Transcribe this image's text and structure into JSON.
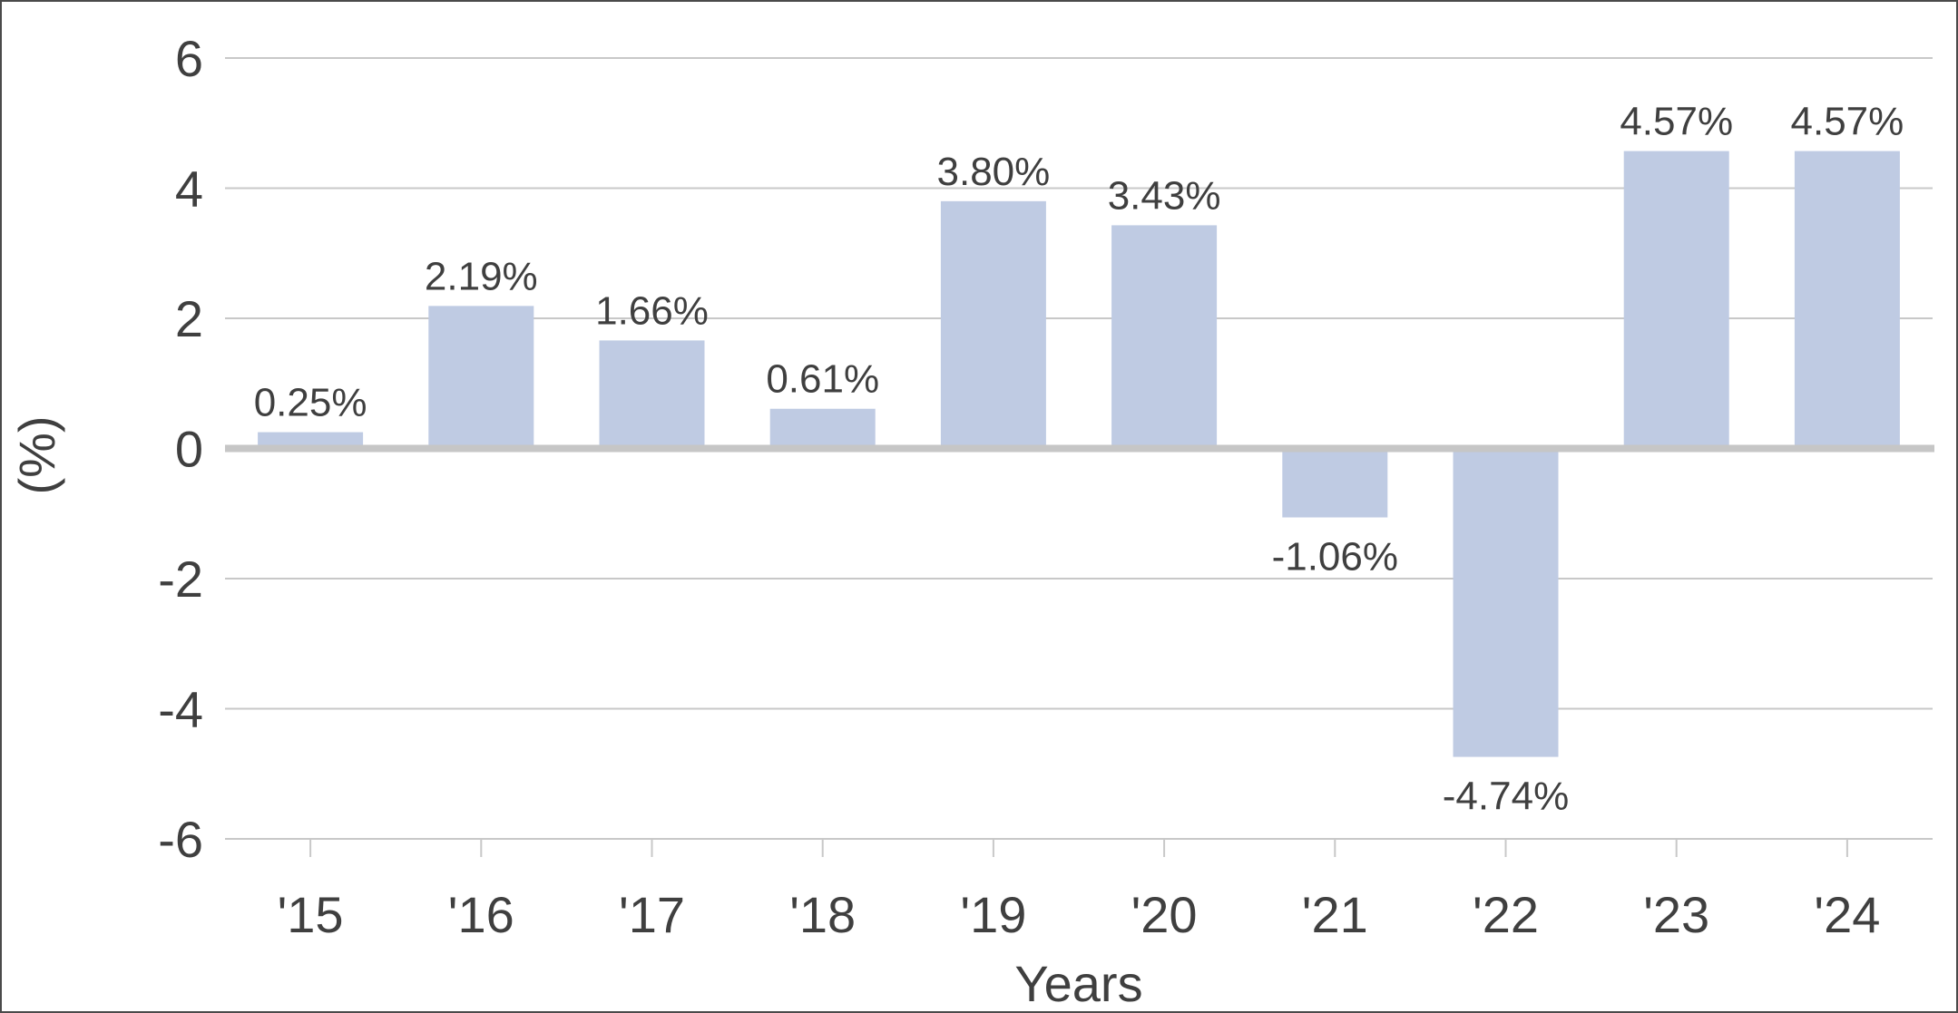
{
  "chart_data": {
    "type": "bar",
    "categories": [
      "'15",
      "'16",
      "'17",
      "'18",
      "'19",
      "'20",
      "'21",
      "'22",
      "'23",
      "'24"
    ],
    "values": [
      0.25,
      2.19,
      1.66,
      0.61,
      3.8,
      3.43,
      -1.06,
      -4.74,
      4.57,
      4.57
    ],
    "value_labels": [
      "0.25%",
      "2.19%",
      "1.66%",
      "0.61%",
      "3.80%",
      "3.43%",
      "-1.06%",
      "-4.74%",
      "4.57%",
      "4.57%"
    ],
    "xlabel": "Years",
    "ylabel": "(%)",
    "ylim": [
      -6,
      6
    ],
    "yticks": [
      6,
      4,
      2,
      0,
      -2,
      -4,
      -6
    ],
    "ytick_labels": [
      "6",
      "4",
      "2",
      "0",
      "-2",
      "-4",
      "-6"
    ],
    "grid": true,
    "legend": "none",
    "colors": {
      "bar": "#bfcbe3",
      "gridline": "#c8c8c8",
      "zero_line": "#c6c6c6",
      "text": "#3f3f3f",
      "border": "#4a4a4a"
    }
  }
}
